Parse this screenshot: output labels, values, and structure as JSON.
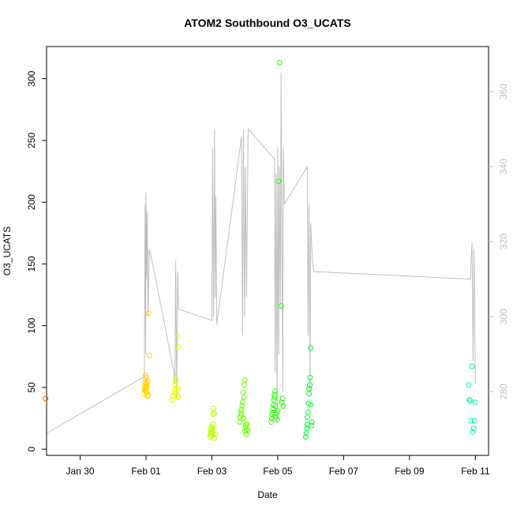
{
  "chart_data": {
    "type": "scatter",
    "title": "ATOM2 Southbound O3_UCATS",
    "xlabel": "Date",
    "ylabel": "O3_UCATS",
    "x_ticks": [
      "Jan 30",
      "Feb 01",
      "Feb 03",
      "Feb 05",
      "Feb 07",
      "Feb 09",
      "Feb 11"
    ],
    "x_tick_values": [
      1,
      3,
      5,
      7,
      9,
      11,
      13
    ],
    "xlim": [
      -0.02,
      13.4
    ],
    "y_ticks": [
      "0",
      "50",
      "100",
      "150",
      "200",
      "250",
      "300"
    ],
    "y_tick_values": [
      0,
      50,
      100,
      150,
      200,
      250,
      300
    ],
    "ylim": [
      -5,
      326
    ],
    "y2_ticks": [
      "280",
      "300",
      "320",
      "340",
      "360"
    ],
    "y2_tick_values": [
      280,
      300,
      320,
      340,
      360
    ],
    "y2lim": [
      263,
      372
    ],
    "grid": false,
    "legend": "none",
    "colors": {
      "trace": "#bebebe",
      "right_axis": "#bebebe",
      "axis": "#000000",
      "points": [
        "#ff5500",
        "#ffd400",
        "#e8ff00",
        "#b8ff00",
        "#66ff00",
        "#2aff00",
        "#00ff2a",
        "#00ff9c"
      ]
    },
    "point_groups": [
      {
        "color": "#ff5500",
        "x": [
          -0.05
        ],
        "y": [
          41
        ]
      },
      {
        "color": "#ffd400",
        "x": [
          2.95,
          2.95,
          2.97,
          2.97,
          2.98,
          2.98,
          2.99,
          2.99,
          3.0,
          3.0,
          3.01,
          3.01,
          3.02,
          3.03,
          3.04,
          3.05,
          3.07,
          3.08,
          3.1
        ],
        "y": [
          45,
          48,
          50,
          52,
          56,
          60,
          47,
          51,
          54,
          49,
          53,
          58,
          46,
          50,
          43,
          55,
          44,
          110,
          76
        ]
      },
      {
        "color": "#e8ff00",
        "x": [
          3.8,
          3.82,
          3.85,
          3.87,
          3.88,
          3.9,
          3.9,
          3.92,
          3.93,
          3.95,
          3.96,
          3.97,
          3.97,
          3.98
        ],
        "y": [
          40,
          43,
          46,
          48,
          52,
          55,
          57,
          45,
          49,
          43,
          91,
          83,
          50,
          42
        ]
      },
      {
        "color": "#b8ff00",
        "x": [
          4.95,
          4.96,
          4.97,
          4.98,
          4.99,
          5.0,
          5.0,
          5.01,
          5.02,
          5.03,
          5.04,
          5.05,
          5.07,
          5.08,
          5.1
        ],
        "y": [
          10,
          12,
          14,
          16,
          18,
          11,
          13,
          15,
          17,
          20,
          28,
          33,
          29,
          9,
          12
        ]
      },
      {
        "color": "#66ff00",
        "x": [
          5.85,
          5.87,
          5.88,
          5.9,
          5.9,
          5.92,
          5.93,
          5.95,
          5.95,
          5.97,
          5.98,
          6.0,
          6.0,
          6.02,
          6.03,
          6.05,
          6.05,
          6.07,
          6.08
        ],
        "y": [
          22,
          26,
          30,
          28,
          32,
          35,
          38,
          25,
          46,
          42,
          52,
          56,
          15,
          18,
          20,
          16,
          12,
          20,
          15
        ]
      },
      {
        "color": "#2aff00",
        "x": [
          6.8,
          6.82,
          6.83,
          6.85,
          6.85,
          6.87,
          6.88,
          6.9,
          6.9,
          6.92,
          6.93,
          6.95,
          6.97,
          6.98,
          7.0,
          7.02,
          7.05,
          7.1,
          7.12,
          7.15,
          7.17
        ],
        "y": [
          22,
          25,
          28,
          30,
          33,
          36,
          40,
          42,
          44,
          47,
          35,
          26,
          29,
          24,
          31,
          217,
          313,
          116,
          38,
          41,
          35
        ]
      },
      {
        "color": "#00ff2a",
        "x": [
          7.85,
          7.87,
          7.88,
          7.9,
          7.9,
          7.92,
          7.93,
          7.95,
          7.95,
          7.97,
          7.98,
          8.0,
          8.0,
          8.02,
          8.03
        ],
        "y": [
          10,
          13,
          17,
          20,
          26,
          30,
          37,
          45,
          49,
          52,
          58,
          82,
          36,
          19,
          22
        ]
      },
      {
        "color": "#00ff9c",
        "x": [
          12.8,
          12.82,
          12.85,
          12.87,
          12.9,
          12.92,
          12.95,
          12.97,
          13.0
        ],
        "y": [
          52,
          40,
          39,
          23,
          67,
          14,
          17,
          23,
          38
        ]
      }
    ],
    "trace_y2_scale": true,
    "trace": {
      "x": [
        0.0,
        2.95,
        2.97,
        2.99,
        3.0,
        3.02,
        3.04,
        3.06,
        3.1,
        3.2,
        3.85,
        3.88,
        3.9,
        3.93,
        3.96,
        3.99,
        5.0,
        5.02,
        5.05,
        5.08,
        5.1,
        5.12,
        5.15,
        5.9,
        5.93,
        5.96,
        5.99,
        6.02,
        6.05,
        6.1,
        6.9,
        6.92,
        6.95,
        6.98,
        7.0,
        7.03,
        7.05,
        7.08,
        7.1,
        7.15,
        7.17,
        7.2,
        7.9,
        7.92,
        7.95,
        7.98,
        8.0,
        8.05,
        8.1,
        12.85,
        12.9,
        12.93,
        12.96,
        13.0
      ],
      "y": [
        269,
        284,
        330,
        290,
        333,
        310,
        328,
        300,
        318,
        314,
        285,
        282,
        315,
        278,
        312,
        302,
        299,
        345,
        300,
        350,
        305,
        332,
        298,
        348,
        295,
        350,
        300,
        340,
        305,
        350,
        342,
        285,
        338,
        272,
        345,
        290,
        340,
        302,
        365,
        280,
        345,
        330,
        340,
        295,
        330,
        280,
        325,
        315,
        312,
        310,
        320,
        288,
        318,
        282
      ]
    }
  }
}
